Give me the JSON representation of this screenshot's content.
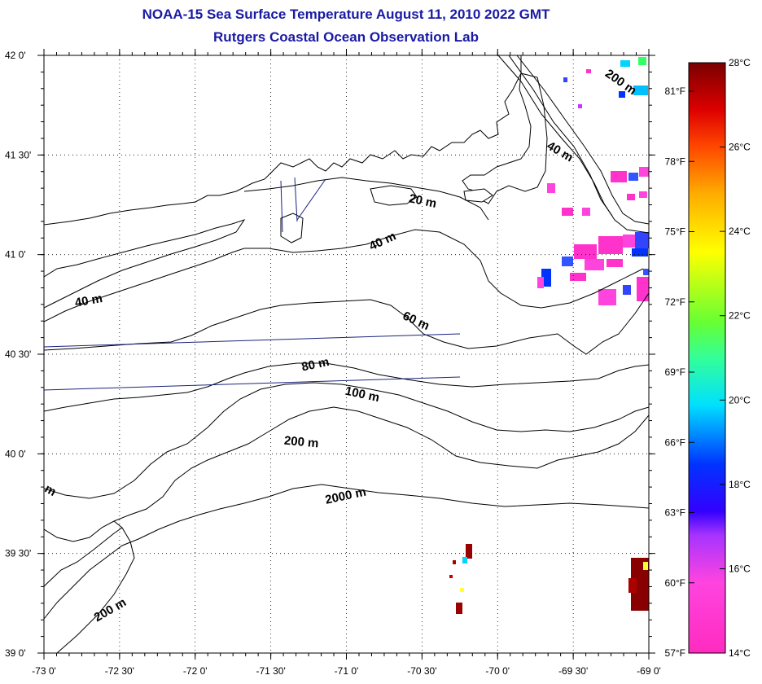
{
  "header": {
    "title": "NOAA-15 Sea Surface Temperature August 11, 2010 2022 GMT",
    "subtitle": "Rutgers Coastal Ocean Observation Lab"
  },
  "map": {
    "lon_range": [
      -73,
      -69
    ],
    "lat_range": [
      39,
      42
    ],
    "lon_labels": [
      "-73 0'",
      "-72 30'",
      "-72 0'",
      "-71 30'",
      "-71 0'",
      "-70 30'",
      "-70 0'",
      "-69 30'",
      "-69 0'"
    ],
    "lat_labels": [
      "42 0'",
      "41 30'",
      "41 0'",
      "40 30'",
      "40 0'",
      "39 30'",
      "39 0'"
    ],
    "grid": "dotted",
    "land_color": "#ffffff",
    "coast_color": "#000000",
    "track_color": "#1a237e"
  },
  "contours": [
    {
      "label": "200 m",
      "lon": -69.2,
      "lat": 41.85,
      "angle": 35
    },
    {
      "label": "40 m",
      "lon": -69.6,
      "lat": 41.5,
      "angle": 30
    },
    {
      "label": "20 m",
      "lon": -70.5,
      "lat": 41.25,
      "angle": 12
    },
    {
      "label": "40 m",
      "lon": -70.75,
      "lat": 41.05,
      "angle": -25
    },
    {
      "label": "40 m",
      "lon": -72.7,
      "lat": 40.75,
      "angle": -10
    },
    {
      "label": "60 m",
      "lon": -70.55,
      "lat": 40.65,
      "angle": 25
    },
    {
      "label": "80 m",
      "lon": -71.2,
      "lat": 40.43,
      "angle": -12
    },
    {
      "label": "100 m",
      "lon": -70.9,
      "lat": 40.28,
      "angle": 12
    },
    {
      "label": "200 m",
      "lon": -71.3,
      "lat": 40.04,
      "angle": 5
    },
    {
      "label": "2000 m",
      "lon": -71.0,
      "lat": 39.77,
      "angle": -12
    },
    {
      "label": "200 m",
      "lon": -72.55,
      "lat": 39.2,
      "angle": -30
    },
    {
      "label": "m",
      "lon": -72.97,
      "lat": 39.8,
      "angle": 30
    }
  ],
  "colorbar": {
    "stops": [
      {
        "t": 0.0,
        "color": "#ff2bbf"
      },
      {
        "t": 0.12,
        "color": "#ff44e0"
      },
      {
        "t": 0.2,
        "color": "#a533ff"
      },
      {
        "t": 0.24,
        "color": "#3300ff"
      },
      {
        "t": 0.32,
        "color": "#0033ff"
      },
      {
        "t": 0.42,
        "color": "#00e0ff"
      },
      {
        "t": 0.5,
        "color": "#33ff99"
      },
      {
        "t": 0.56,
        "color": "#66ff33"
      },
      {
        "t": 0.68,
        "color": "#ffff00"
      },
      {
        "t": 0.78,
        "color": "#ffaa00"
      },
      {
        "t": 0.86,
        "color": "#ff4400"
      },
      {
        "t": 0.92,
        "color": "#dd0000"
      },
      {
        "t": 1.0,
        "color": "#7a0000"
      }
    ],
    "celsius": [
      "28°C",
      "26°C",
      "24°C",
      "22°C",
      "20°C",
      "18°C",
      "16°C",
      "14°C"
    ],
    "fahrenheit": [
      "81°F",
      "78°F",
      "75°F",
      "72°F",
      "69°F",
      "66°F",
      "63°F",
      "60°F",
      "57°F"
    ]
  }
}
